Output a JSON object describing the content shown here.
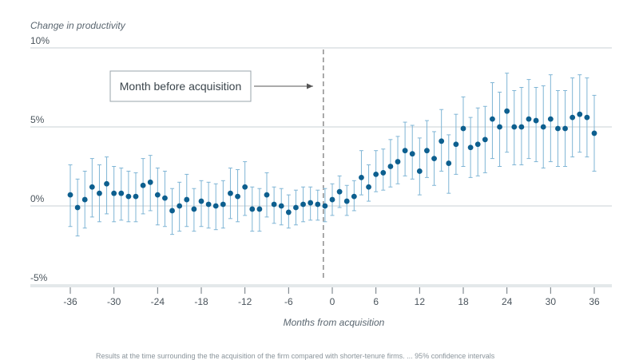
{
  "chart_data": {
    "type": "scatter",
    "title": "",
    "ylabel": "Change in productivity",
    "xlabel": "Months from acquisition",
    "xlim": [
      -37,
      37
    ],
    "ylim": [
      -5,
      10
    ],
    "x_ticks": [
      -36,
      -30,
      -24,
      -18,
      -12,
      -6,
      0,
      6,
      12,
      18,
      24,
      30,
      36
    ],
    "x_tick_labels": [
      "-36",
      "-30",
      "-24",
      "-18",
      "-12",
      "-6",
      "0",
      "6",
      "12",
      "18",
      "24",
      "30",
      "36"
    ],
    "y_ticks": [
      -5,
      0,
      5,
      10
    ],
    "y_tick_labels": [
      "-5%",
      "0%",
      "5%",
      "10%"
    ],
    "reference_line_x": -1,
    "annotation": "Month before acquisition",
    "footnote": "Results at the time surrounding the the acquisition of the firm compared with shorter-tenure firms. ... 95% confidence intervals",
    "colors": {
      "point": "#0d5f8f",
      "error_bar": "#7fb5d5",
      "grid": "#c8d0d6",
      "reference": "#555555"
    },
    "x": [
      -36,
      -35,
      -34,
      -33,
      -32,
      -31,
      -30,
      -29,
      -28,
      -27,
      -26,
      -25,
      -24,
      -23,
      -22,
      -21,
      -20,
      -19,
      -18,
      -17,
      -16,
      -15,
      -14,
      -13,
      -12,
      -11,
      -10,
      -9,
      -8,
      -7,
      -6,
      -5,
      -4,
      -3,
      -2,
      -1,
      0,
      1,
      2,
      3,
      4,
      5,
      6,
      7,
      8,
      9,
      10,
      11,
      12,
      13,
      14,
      15,
      16,
      17,
      18,
      19,
      20,
      21,
      22,
      23,
      24,
      25,
      26,
      27,
      28,
      29,
      30,
      31,
      32,
      33,
      34,
      35,
      36
    ],
    "y": [
      0.7,
      -0.1,
      0.4,
      1.2,
      0.8,
      1.4,
      0.8,
      0.8,
      0.6,
      0.6,
      1.3,
      1.5,
      0.7,
      0.5,
      -0.3,
      0.0,
      0.4,
      -0.2,
      0.3,
      0.1,
      0.0,
      0.1,
      0.8,
      0.6,
      1.2,
      -0.2,
      -0.2,
      0.7,
      0.1,
      0.0,
      -0.4,
      -0.1,
      0.1,
      0.2,
      0.1,
      0.0,
      0.4,
      0.9,
      0.3,
      0.6,
      1.8,
      1.2,
      2.0,
      2.1,
      2.5,
      2.8,
      3.5,
      3.3,
      2.2,
      3.5,
      3.0,
      4.1,
      2.7,
      3.9,
      4.9,
      3.7,
      3.9,
      4.2,
      5.5,
      5.0,
      6.0,
      5.0,
      5.0,
      5.5,
      5.4,
      5.0,
      5.5,
      4.9,
      4.9,
      5.6,
      5.8,
      5.6,
      4.6
    ],
    "y_low": [
      -1.3,
      -1.9,
      -1.4,
      -0.7,
      -1.0,
      -0.5,
      -1.0,
      -0.9,
      -1.0,
      -1.0,
      -0.5,
      -0.3,
      -1.2,
      -1.3,
      -1.8,
      -1.6,
      -1.3,
      -1.6,
      -1.3,
      -1.4,
      -1.5,
      -1.4,
      -0.8,
      -1.0,
      -0.6,
      -1.6,
      -1.6,
      -0.7,
      -1.1,
      -1.2,
      -1.4,
      -1.2,
      -1.0,
      -0.9,
      -0.9,
      -1.0,
      -0.6,
      -0.1,
      -0.6,
      -0.3,
      0.7,
      0.3,
      0.9,
      1.0,
      1.2,
      1.4,
      1.9,
      1.7,
      0.7,
      1.8,
      1.3,
      2.2,
      0.8,
      2.0,
      2.5,
      1.8,
      1.9,
      2.1,
      3.0,
      2.5,
      3.4,
      2.6,
      2.6,
      3.0,
      2.8,
      2.4,
      2.8,
      2.5,
      2.5,
      3.1,
      3.4,
      3.1,
      2.2
    ],
    "y_high": [
      2.6,
      1.7,
      2.2,
      3.0,
      2.6,
      3.1,
      2.5,
      2.4,
      2.2,
      2.1,
      3.0,
      3.2,
      2.4,
      2.2,
      1.1,
      1.5,
      2.0,
      1.1,
      1.6,
      1.5,
      1.4,
      1.6,
      2.4,
      2.3,
      2.8,
      1.2,
      1.1,
      2.1,
      1.2,
      1.1,
      0.7,
      1.0,
      1.2,
      1.2,
      1.0,
      1.1,
      1.4,
      1.9,
      1.3,
      1.6,
      3.5,
      2.6,
      3.5,
      3.6,
      4.2,
      4.4,
      5.3,
      5.1,
      4.3,
      5.4,
      4.7,
      6.1,
      4.5,
      5.8,
      6.9,
      5.6,
      6.2,
      6.3,
      7.8,
      7.2,
      8.4,
      7.3,
      7.5,
      8.0,
      7.5,
      7.6,
      8.3,
      7.3,
      7.3,
      8.1,
      8.3,
      8.1,
      7.0
    ]
  }
}
